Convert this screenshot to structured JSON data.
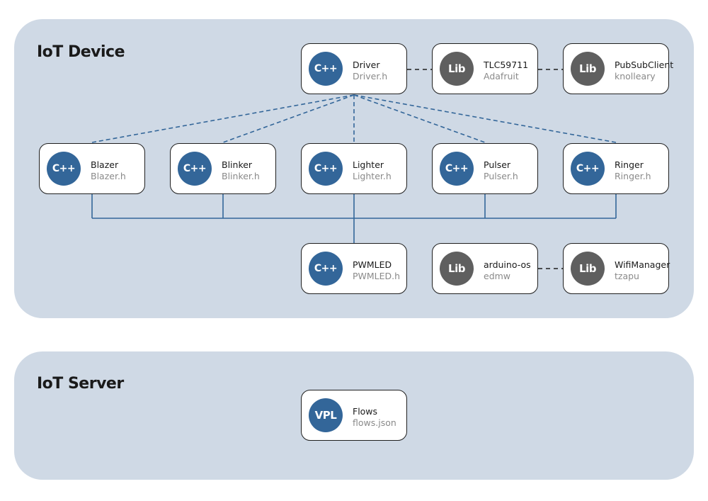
{
  "groups": {
    "device": {
      "title": "IoT Device"
    },
    "server": {
      "title": "IoT Server"
    }
  },
  "nodes": {
    "driver": {
      "badge": "C++",
      "name": "Driver",
      "file": "Driver.h"
    },
    "tlc59711": {
      "badge": "Lib",
      "name": "TLC59711",
      "file": "Adafruit"
    },
    "pubsubclient": {
      "badge": "Lib",
      "name": "PubSubClient",
      "file": "knolleary"
    },
    "blazer": {
      "badge": "C++",
      "name": "Blazer",
      "file": "Blazer.h"
    },
    "blinker": {
      "badge": "C++",
      "name": "Blinker",
      "file": "Blinker.h"
    },
    "lighter": {
      "badge": "C++",
      "name": "Lighter",
      "file": "Lighter.h"
    },
    "pulser": {
      "badge": "C++",
      "name": "Pulser",
      "file": "Pulser.h"
    },
    "ringer": {
      "badge": "C++",
      "name": "Ringer",
      "file": "Ringer.h"
    },
    "pwmled": {
      "badge": "C++",
      "name": "PWMLED",
      "file": "PWMLED.h"
    },
    "arduinoos": {
      "badge": "Lib",
      "name": "arduino-os",
      "file": "edmw"
    },
    "wifimanager": {
      "badge": "Lib",
      "name": "WifiManager",
      "file": "tzapu"
    },
    "flows": {
      "badge": "VPL",
      "name": "Flows",
      "file": "flows.json"
    }
  },
  "colors": {
    "group_background": "#cfd9e5",
    "cpp_badge": "#336699",
    "lib_badge": "#5f5f5f",
    "edge_blue": "#336699",
    "edge_black": "#1f1f1f"
  }
}
